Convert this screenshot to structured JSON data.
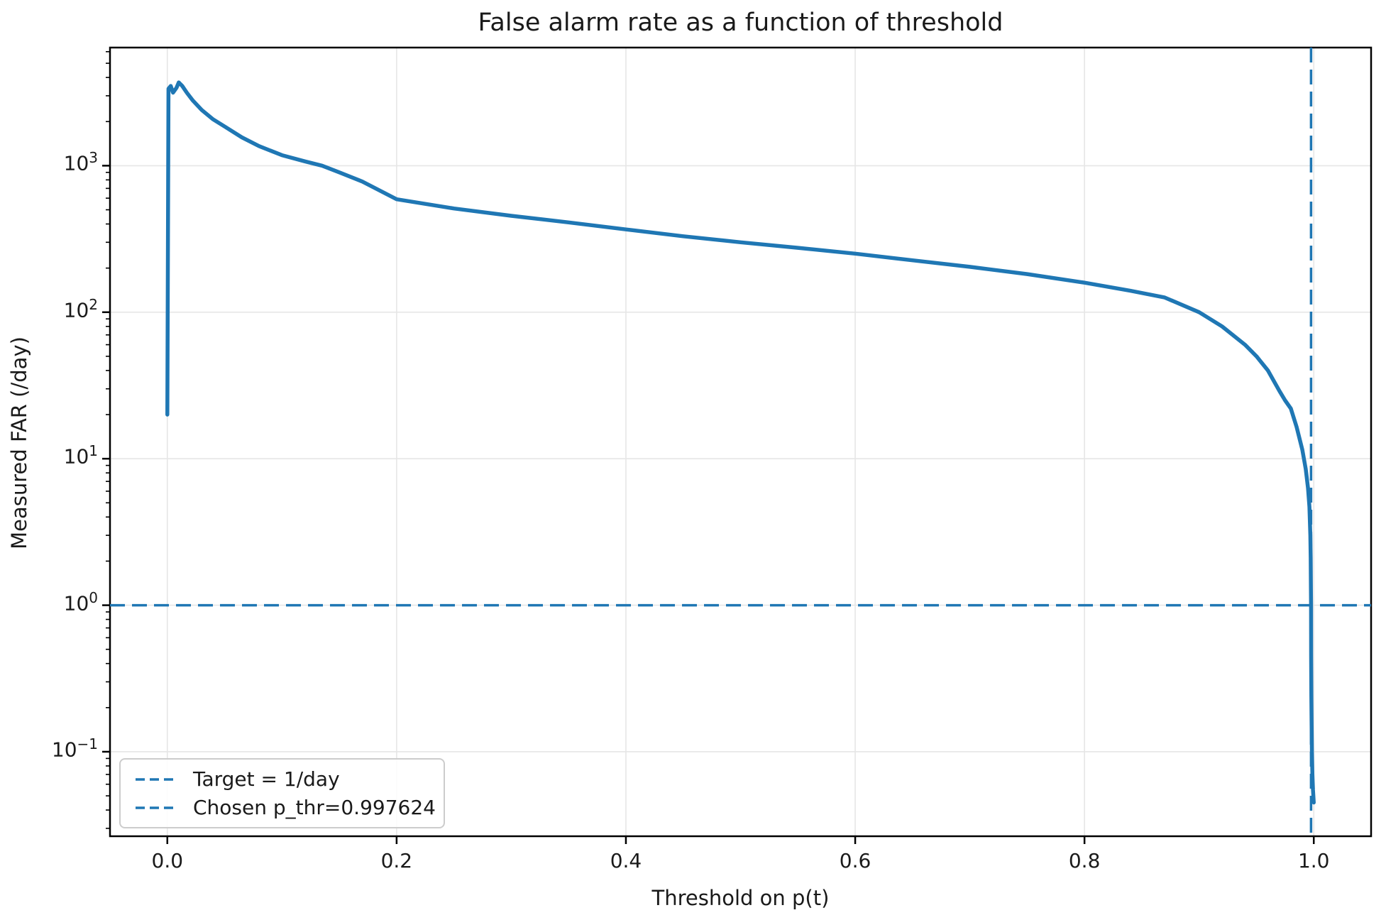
{
  "chart_data": {
    "type": "line",
    "title": "False alarm rate as a function of threshold",
    "xlabel": "Threshold on p(t)",
    "ylabel": "Measured FAR (/day)",
    "x_scale": "linear",
    "y_scale": "log",
    "xlim": [
      -0.05,
      1.05
    ],
    "ylim": [
      0.0265,
      6400
    ],
    "grid": true,
    "x_ticks": [
      {
        "value": 0.0,
        "label": "0.0"
      },
      {
        "value": 0.2,
        "label": "0.2"
      },
      {
        "value": 0.4,
        "label": "0.4"
      },
      {
        "value": 0.6,
        "label": "0.6"
      },
      {
        "value": 0.8,
        "label": "0.8"
      },
      {
        "value": 1.0,
        "label": "1.0"
      }
    ],
    "y_ticks": [
      {
        "value": 1000,
        "exp": "3"
      },
      {
        "value": 100,
        "exp": "2"
      },
      {
        "value": 10,
        "exp": "1"
      },
      {
        "value": 1,
        "exp": "0"
      },
      {
        "value": 0.1,
        "exp": "−1"
      }
    ],
    "series": [
      {
        "name": "Measured FAR",
        "color": "#1f77b4",
        "style": "solid",
        "points": [
          [
            0.0,
            20
          ],
          [
            0.001,
            3350
          ],
          [
            0.003,
            3500
          ],
          [
            0.005,
            3150
          ],
          [
            0.008,
            3400
          ],
          [
            0.01,
            3700
          ],
          [
            0.013,
            3500
          ],
          [
            0.017,
            3150
          ],
          [
            0.022,
            2800
          ],
          [
            0.03,
            2400
          ],
          [
            0.04,
            2070
          ],
          [
            0.05,
            1850
          ],
          [
            0.065,
            1560
          ],
          [
            0.08,
            1360
          ],
          [
            0.1,
            1180
          ],
          [
            0.12,
            1070
          ],
          [
            0.135,
            1000
          ],
          [
            0.15,
            900
          ],
          [
            0.17,
            780
          ],
          [
            0.2,
            590
          ],
          [
            0.25,
            510
          ],
          [
            0.3,
            455
          ],
          [
            0.35,
            410
          ],
          [
            0.4,
            367
          ],
          [
            0.45,
            330
          ],
          [
            0.5,
            300
          ],
          [
            0.55,
            275
          ],
          [
            0.6,
            251
          ],
          [
            0.65,
            226
          ],
          [
            0.7,
            204
          ],
          [
            0.75,
            182
          ],
          [
            0.8,
            159
          ],
          [
            0.84,
            140
          ],
          [
            0.87,
            126
          ],
          [
            0.9,
            100
          ],
          [
            0.92,
            80
          ],
          [
            0.94,
            60
          ],
          [
            0.95,
            50
          ],
          [
            0.96,
            40
          ],
          [
            0.97,
            29
          ],
          [
            0.975,
            25
          ],
          [
            0.98,
            22
          ],
          [
            0.985,
            16.5
          ],
          [
            0.99,
            11.5
          ],
          [
            0.993,
            8.5
          ],
          [
            0.995,
            6.3
          ],
          [
            0.9962,
            4.7
          ],
          [
            0.997,
            3.0
          ],
          [
            0.9973,
            2.1
          ],
          [
            0.9975,
            1.3
          ],
          [
            0.9976,
            1.0
          ],
          [
            0.9977,
            0.45
          ],
          [
            0.9979,
            0.24
          ],
          [
            0.9981,
            0.15
          ],
          [
            0.9984,
            0.1
          ],
          [
            0.9988,
            0.07
          ],
          [
            0.9993,
            0.055
          ],
          [
            1.0,
            0.045
          ]
        ]
      }
    ],
    "reference_lines": [
      {
        "name": "Target = 1/day",
        "orientation": "horizontal",
        "value": 1.0,
        "color": "#1f77b4",
        "style": "dashed"
      },
      {
        "name": "Chosen p_thr=0.997624",
        "orientation": "vertical",
        "value": 0.997624,
        "color": "#1f77b4",
        "style": "dashed"
      }
    ],
    "legend": {
      "position": "lower left",
      "entries": [
        "Target = 1/day",
        "Chosen p_thr=0.997624"
      ]
    },
    "colors": {
      "line": "#1f77b4",
      "grid": "#e6e6e6",
      "spine": "#000000",
      "text": "#1a1a1a"
    }
  }
}
